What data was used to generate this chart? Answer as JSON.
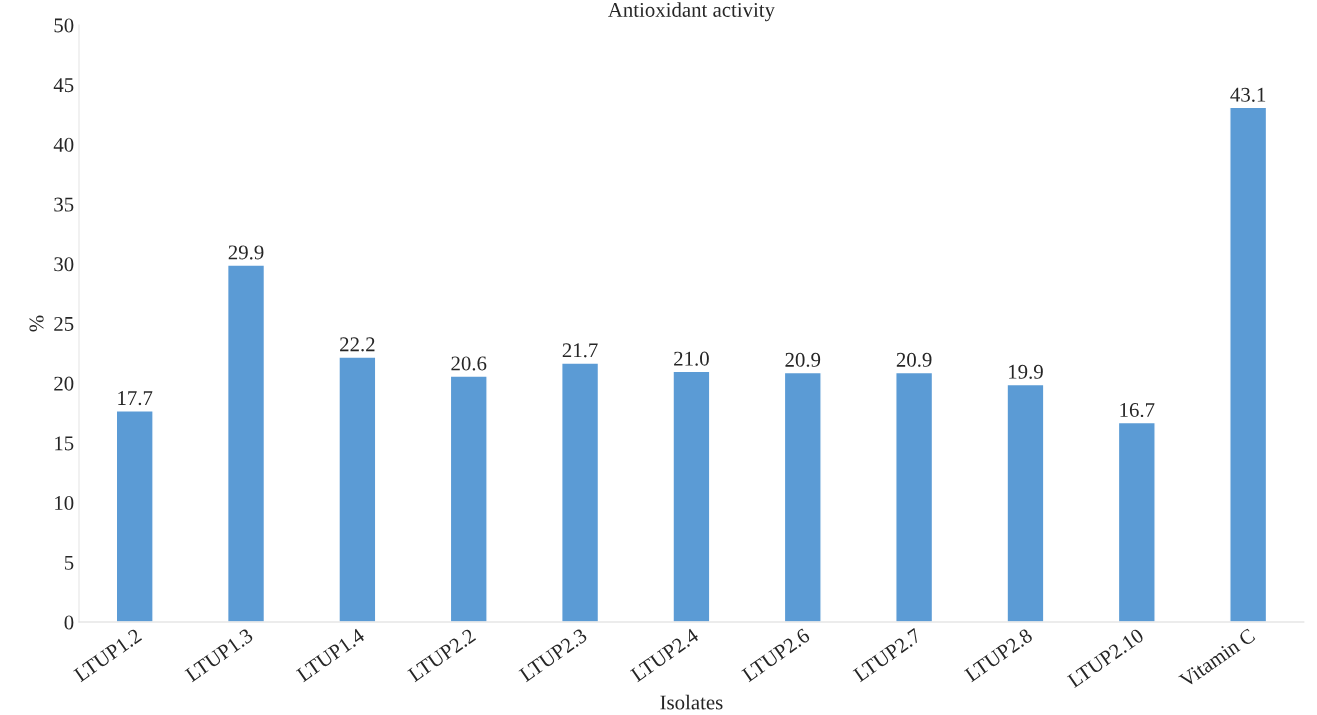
{
  "chart_data": {
    "type": "bar",
    "title": "Antioxidant activity",
    "xlabel": "Isolates",
    "ylabel": "%",
    "categories": [
      "LTUP1.2",
      "LTUP1.3",
      "LTUP1.4",
      "LTUP2.2",
      "LTUP2.3",
      "LTUP2.4",
      "LTUP2.6",
      "LTUP2.7",
      "LTUP2.8",
      "LTUP2.10",
      "Vitamin C"
    ],
    "values": [
      17.7,
      29.9,
      22.2,
      20.6,
      21.7,
      21.0,
      20.9,
      20.9,
      19.9,
      16.7,
      43.1
    ],
    "value_labels": [
      "17.7",
      "29.9",
      "22.2",
      "20.6",
      "21.7",
      "21.0",
      "20.9",
      "20.9",
      "19.9",
      "16.7",
      "43.1"
    ],
    "color": "#5b9bd5",
    "ylim": [
      0,
      50
    ],
    "yticks": [
      0,
      5,
      10,
      15,
      20,
      25,
      30,
      35,
      40,
      45,
      50
    ],
    "grid": false,
    "legend": false
  }
}
